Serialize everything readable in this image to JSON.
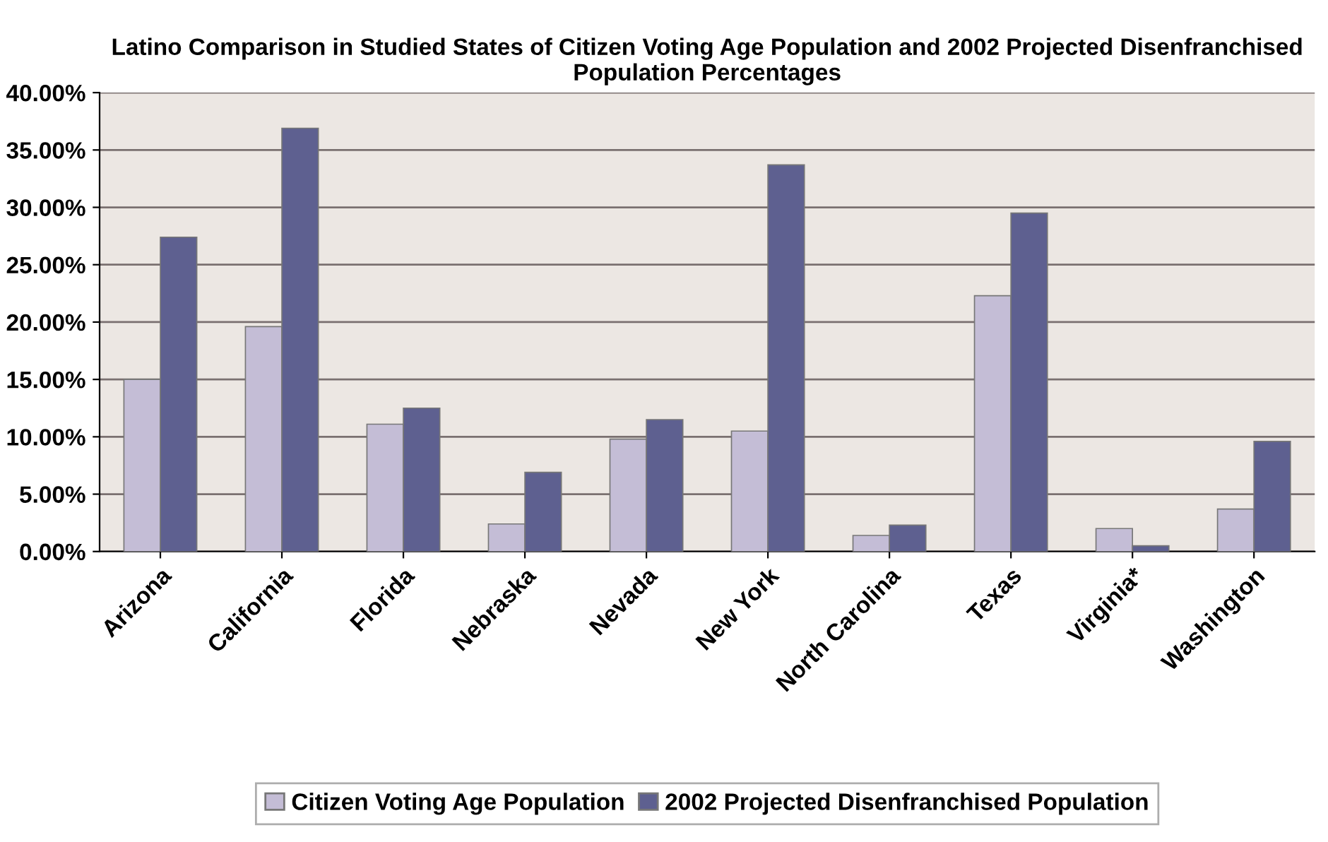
{
  "chart_data": {
    "type": "bar",
    "title": "Latino Comparison in Studied States of Citizen Voting Age Population and 2002 Projected Disenfranchised Population Percentages",
    "categories": [
      "Arizona",
      "California",
      "Florida",
      "Nebraska",
      "Nevada",
      "New York",
      "North Carolina",
      "Texas",
      "Virginia*",
      "Washington"
    ],
    "series": [
      {
        "name": "Citizen Voting Age Population",
        "color": "#c4bdd6",
        "values": [
          15.0,
          19.6,
          11.1,
          2.4,
          9.8,
          10.5,
          1.4,
          22.3,
          2.0,
          3.7
        ]
      },
      {
        "name": "2002 Projected Disenfranchised Population",
        "color": "#5e6090",
        "values": [
          27.4,
          36.9,
          12.5,
          6.9,
          11.5,
          33.7,
          2.3,
          29.5,
          0.5,
          9.6
        ]
      }
    ],
    "ylim": [
      0,
      40
    ],
    "yticks": [
      {
        "value": 0,
        "label": "0.00%"
      },
      {
        "value": 5,
        "label": "5.00%"
      },
      {
        "value": 10,
        "label": "10.00%"
      },
      {
        "value": 15,
        "label": "15.00%"
      },
      {
        "value": 20,
        "label": "20.00%"
      },
      {
        "value": 25,
        "label": "25.00%"
      },
      {
        "value": 30,
        "label": "30.00%"
      },
      {
        "value": 35,
        "label": "35.00%"
      },
      {
        "value": 40,
        "label": "40.00%"
      }
    ],
    "grid": "y",
    "legend": "bottom"
  }
}
